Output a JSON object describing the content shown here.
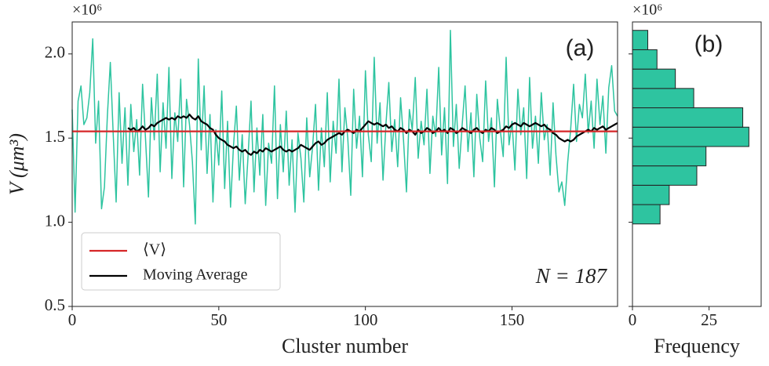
{
  "chart_data": [
    {
      "type": "line",
      "xlabel": "Cluster number",
      "ylabel": "V (μm³)",
      "offset_label": "×10⁶",
      "annotations": [
        "(a)",
        "N = 187"
      ],
      "xlim": [
        0,
        186
      ],
      "xticks": [
        0,
        50,
        100,
        150
      ],
      "ylim": [
        0.5,
        2.19
      ],
      "yticks": [
        {
          "value": 0.5,
          "label": "0.5"
        },
        {
          "value": 1,
          "label": "1.0"
        },
        {
          "value": 1.5,
          "label": "1.5"
        },
        {
          "value": 2,
          "label": "2.0"
        }
      ],
      "legend": "lower left",
      "reference_line": {
        "name": "⟨V⟩",
        "value": 1.54,
        "color": "#d62728"
      },
      "x": [
        0,
        1,
        2,
        3,
        4,
        5,
        6,
        7,
        8,
        9,
        10,
        11,
        12,
        13,
        14,
        15,
        16,
        17,
        18,
        19,
        20,
        21,
        22,
        23,
        24,
        25,
        26,
        27,
        28,
        29,
        30,
        31,
        32,
        33,
        34,
        35,
        36,
        37,
        38,
        39,
        40,
        41,
        42,
        43,
        44,
        45,
        46,
        47,
        48,
        49,
        50,
        51,
        52,
        53,
        54,
        55,
        56,
        57,
        58,
        59,
        60,
        61,
        62,
        63,
        64,
        65,
        66,
        67,
        68,
        69,
        70,
        71,
        72,
        73,
        74,
        75,
        76,
        77,
        78,
        79,
        80,
        81,
        82,
        83,
        84,
        85,
        86,
        87,
        88,
        89,
        90,
        91,
        92,
        93,
        94,
        95,
        96,
        97,
        98,
        99,
        100,
        101,
        102,
        103,
        104,
        105,
        106,
        107,
        108,
        109,
        110,
        111,
        112,
        113,
        114,
        115,
        116,
        117,
        118,
        119,
        120,
        121,
        122,
        123,
        124,
        125,
        126,
        127,
        128,
        129,
        130,
        131,
        132,
        133,
        134,
        135,
        136,
        137,
        138,
        139,
        140,
        141,
        142,
        143,
        144,
        145,
        146,
        147,
        148,
        149,
        150,
        151,
        152,
        153,
        154,
        155,
        156,
        157,
        158,
        159,
        160,
        161,
        162,
        163,
        164,
        165,
        166,
        167,
        168,
        169,
        170,
        171,
        172,
        173,
        174,
        175,
        176,
        177,
        178,
        179,
        180,
        181,
        182,
        183,
        184,
        185,
        186
      ],
      "series": [
        {
          "color": "#2ec4a0",
          "values": [
            1.67,
            1.06,
            1.72,
            1.81,
            1.58,
            1.62,
            1.77,
            2.09,
            1.47,
            1.72,
            1.08,
            1.21,
            1.63,
            1.95,
            1.52,
            1.12,
            1.77,
            1.35,
            1.68,
            1.22,
            1.7,
            1.42,
            1.61,
            1.28,
            1.82,
            1.5,
            1.15,
            1.74,
            1.49,
            1.88,
            1.3,
            1.71,
            1.44,
            1.92,
            1.26,
            1.65,
            1.48,
            1.85,
            1.21,
            1.73,
            1.58,
            1.36,
            0.99,
            1.97,
            1.43,
            1.81,
            1.29,
            1.64,
            1.12,
            1.55,
            1.34,
            1.78,
            1.2,
            1.6,
            1.09,
            1.45,
            1.69,
            1.25,
            1.52,
            1.11,
            1.4,
            1.72,
            1.18,
            1.56,
            1.28,
            1.64,
            1.1,
            1.47,
            1.35,
            1.81,
            1.14,
            1.58,
            1.3,
            1.66,
            1.22,
            1.49,
            1.06,
            1.53,
            1.38,
            1.12,
            1.62,
            1.27,
            1.45,
            1.7,
            1.19,
            1.56,
            1.33,
            1.77,
            1.24,
            1.6,
            1.41,
            1.85,
            1.3,
            1.68,
            1.5,
            1.16,
            1.79,
            1.44,
            1.63,
            1.27,
            1.9,
            1.52,
            1.36,
            1.98,
            1.47,
            1.71,
            1.25,
            1.58,
            1.83,
            1.42,
            1.61,
            1.33,
            1.74,
            1.49,
            1.18,
            1.67,
            1.55,
            1.86,
            1.38,
            1.6,
            1.46,
            1.79,
            1.29,
            1.63,
            1.51,
            1.92,
            1.4,
            1.68,
            1.23,
            2.14,
            1.45,
            1.7,
            1.32,
            1.58,
            1.81,
            1.42,
            1.65,
            1.27,
            1.76,
            1.5,
            1.36,
            1.84,
            1.48,
            1.62,
            1.21,
            1.73,
            1.55,
            1.39,
            1.98,
            1.46,
            1.6,
            1.31,
            1.79,
            1.52,
            1.68,
            1.26,
            1.86,
            1.44,
            1.63,
            1.35,
            1.77,
            1.49,
            1.58,
            1.28,
            1.71,
            1.4,
            1.18,
            1.24,
            1.1,
            1.36,
            1.55,
            1.82,
            1.48,
            1.7,
            1.62,
            1.88,
            1.53,
            1.72,
            1.44,
            1.85,
            1.58,
            1.75,
            1.41,
            1.8,
            1.93,
            1.66,
            1.63
          ]
        },
        {
          "name": "Moving Average",
          "color": "#000000",
          "values": [
            null,
            null,
            null,
            null,
            null,
            null,
            null,
            null,
            null,
            null,
            null,
            null,
            null,
            null,
            null,
            null,
            null,
            null,
            null,
            1.56,
            1.55,
            1.56,
            1.54,
            1.55,
            1.57,
            1.55,
            1.56,
            1.58,
            1.57,
            1.59,
            1.6,
            1.61,
            1.62,
            1.61,
            1.62,
            1.61,
            1.63,
            1.62,
            1.63,
            1.62,
            1.64,
            1.62,
            1.61,
            1.63,
            1.6,
            1.59,
            1.58,
            1.56,
            1.55,
            1.52,
            1.5,
            1.49,
            1.48,
            1.46,
            1.45,
            1.44,
            1.45,
            1.43,
            1.42,
            1.43,
            1.41,
            1.4,
            1.42,
            1.41,
            1.43,
            1.42,
            1.44,
            1.43,
            1.42,
            1.43,
            1.44,
            1.45,
            1.43,
            1.42,
            1.43,
            1.42,
            1.43,
            1.44,
            1.46,
            1.45,
            1.44,
            1.43,
            1.45,
            1.47,
            1.48,
            1.46,
            1.47,
            1.49,
            1.5,
            1.51,
            1.52,
            1.53,
            1.52,
            1.54,
            1.55,
            1.54,
            1.53,
            1.55,
            1.54,
            1.56,
            1.58,
            1.6,
            1.59,
            1.58,
            1.59,
            1.58,
            1.57,
            1.58,
            1.56,
            1.57,
            1.55,
            1.54,
            1.56,
            1.55,
            1.53,
            1.55,
            1.54,
            1.52,
            1.55,
            1.53,
            1.54,
            1.56,
            1.55,
            1.53,
            1.54,
            1.56,
            1.54,
            1.55,
            1.53,
            1.56,
            1.55,
            1.53,
            1.54,
            1.56,
            1.55,
            1.54,
            1.53,
            1.55,
            1.56,
            1.54,
            1.53,
            1.55,
            1.54,
            1.56,
            1.55,
            1.53,
            1.54,
            1.55,
            1.57,
            1.56,
            1.58,
            1.59,
            1.58,
            1.57,
            1.59,
            1.58,
            1.57,
            1.58,
            1.59,
            1.58,
            1.57,
            1.58,
            1.56,
            1.55,
            1.53,
            1.52,
            1.5,
            1.49,
            1.48,
            1.49,
            1.48,
            1.49,
            1.51,
            1.52,
            1.53,
            1.54,
            1.55,
            1.54,
            1.56,
            1.55,
            1.56,
            1.57,
            1.55,
            1.56,
            1.57,
            1.58,
            1.59
          ]
        }
      ]
    },
    {
      "type": "histogram",
      "orientation": "horizontal",
      "xlabel": "Frequency",
      "offset_label": "×10⁶",
      "annotations": [
        "(b)"
      ],
      "xlim": [
        0,
        42
      ],
      "xticks": [
        0,
        25
      ],
      "ylim": [
        0.5,
        2.19
      ],
      "yticks": [
        0.5,
        1,
        1.5,
        2
      ],
      "color": "#2ec4a0",
      "bins": [
        0.99,
        1.105,
        1.22,
        1.335,
        1.45,
        1.565,
        1.68,
        1.795,
        1.91,
        2.025,
        2.14
      ],
      "values": [
        9,
        12,
        21,
        24,
        38,
        36,
        20,
        14,
        8,
        5
      ]
    }
  ]
}
